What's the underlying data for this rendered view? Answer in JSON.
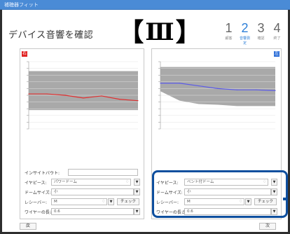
{
  "window": {
    "title": "補聴器フィット"
  },
  "page": {
    "title": "デバイス音響を確認"
  },
  "badge": {
    "left": "【",
    "numeral": "Ⅲ",
    "right": "】"
  },
  "steps": [
    {
      "num": "1",
      "label": "顧客",
      "active": false
    },
    {
      "num": "2",
      "label": "音響測定",
      "active": true
    },
    {
      "num": "3",
      "label": "確認",
      "active": false
    },
    {
      "num": "4",
      "label": "終了",
      "active": false
    }
  ],
  "left_panel": {
    "side": "右",
    "rows": {
      "insitu": {
        "label": "インサイトバウト:",
        "value": ""
      },
      "earpiece": {
        "label": "イヤピース:",
        "value": "パワードーム",
        "icon": "♢"
      },
      "dome": {
        "label": "ドームサイズ:",
        "value": "小"
      },
      "receiver": {
        "label": "レシーバー:",
        "value": "M",
        "check": "チェック"
      },
      "wire": {
        "label": "ワイヤーの長さ:",
        "value": "0.6"
      }
    }
  },
  "right_panel": {
    "side": "左",
    "rows": {
      "earpiece": {
        "label": "イヤピース:",
        "value": "ベント付ドーム",
        "icon": "♢"
      },
      "dome": {
        "label": "ドームサイズ:",
        "value": "小"
      },
      "receiver": {
        "label": "レシーバー:",
        "value": "M",
        "check": "チェック"
      },
      "wire": {
        "label": "ワイヤーの長さ:",
        "value": "0.6"
      }
    }
  },
  "footer": {
    "back": "戻",
    "next": "次"
  },
  "chart_data": [
    {
      "type": "line",
      "x": [
        0,
        1,
        2,
        3,
        4,
        5,
        6
      ],
      "series": [
        {
          "values": [
            -48,
            -48,
            -50,
            -54,
            -51,
            -56,
            -58
          ],
          "color": "#e03030"
        }
      ],
      "band_upper": [
        -14,
        -14,
        -14,
        -14,
        -14,
        -14,
        -14
      ],
      "band_lower": [
        -72,
        -72,
        -72,
        -72,
        -72,
        -72,
        -72
      ],
      "ylim": [
        0,
        -100
      ],
      "grid": true
    },
    {
      "type": "line",
      "x": [
        0,
        1,
        2,
        3,
        4,
        5,
        6
      ],
      "series": [
        {
          "values": [
            -32,
            -32,
            -36,
            -40,
            -42,
            -42,
            -43
          ],
          "color": "#5a5ae8"
        }
      ],
      "band_upper": [
        -8,
        -8,
        -8,
        -8,
        -8,
        -8,
        -8
      ],
      "band_lower": [
        -44,
        -58,
        -63,
        -64,
        -66,
        -66,
        -66
      ],
      "ylim": [
        0,
        -100
      ],
      "grid": true
    }
  ]
}
